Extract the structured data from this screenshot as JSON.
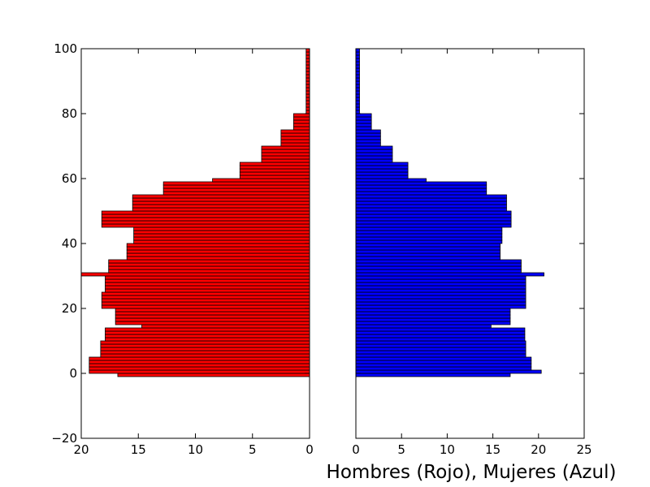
{
  "chart_data": {
    "type": "bar",
    "orientation": "horizontal",
    "xlabel": "Hombres (Rojo), Mujeres (Azul)",
    "y_bins": [
      -1,
      0,
      1,
      2,
      3,
      4,
      5,
      6,
      7,
      8,
      9,
      10,
      11,
      12,
      13,
      14,
      15,
      16,
      17,
      18,
      19,
      20,
      21,
      22,
      23,
      24,
      25,
      26,
      27,
      28,
      29,
      30,
      31,
      32,
      33,
      34,
      35,
      36,
      37,
      38,
      39,
      40,
      41,
      42,
      43,
      44,
      45,
      46,
      47,
      48,
      49,
      50,
      51,
      52,
      53,
      54,
      55,
      56,
      57,
      58,
      59,
      60,
      61,
      62,
      63,
      64,
      65,
      66,
      67,
      68,
      69,
      70,
      71,
      72,
      73,
      74,
      75,
      76,
      77,
      78,
      79,
      80,
      81,
      82,
      83,
      84,
      85,
      86,
      87,
      88,
      89,
      90,
      91,
      92,
      93,
      94,
      95,
      96,
      97,
      98,
      99
    ],
    "bin_height": 1,
    "series": [
      {
        "name": "Hombres",
        "color": "#ff0000",
        "direction": "left",
        "xlim": [
          20,
          0
        ],
        "xticks": [
          "20",
          "15",
          "10",
          "5",
          "0"
        ],
        "values": [
          16.8,
          19.3,
          19.3,
          19.3,
          19.3,
          19.3,
          18.3,
          18.3,
          18.3,
          18.3,
          18.3,
          17.9,
          17.9,
          17.9,
          17.9,
          14.7,
          17.0,
          17.0,
          17.0,
          17.0,
          17.0,
          18.2,
          18.2,
          18.2,
          18.2,
          18.2,
          17.9,
          17.9,
          17.9,
          17.9,
          17.9,
          20.0,
          17.6,
          17.6,
          17.6,
          17.6,
          16.0,
          16.0,
          16.0,
          16.0,
          16.0,
          15.4,
          15.4,
          15.4,
          15.4,
          15.4,
          18.2,
          18.2,
          18.2,
          18.2,
          18.2,
          15.5,
          15.5,
          15.5,
          15.5,
          15.5,
          12.8,
          12.8,
          12.8,
          12.8,
          8.5,
          6.1,
          6.1,
          6.1,
          6.1,
          6.1,
          4.2,
          4.2,
          4.2,
          4.2,
          4.2,
          2.5,
          2.5,
          2.5,
          2.5,
          2.5,
          1.4,
          1.4,
          1.4,
          1.4,
          1.4,
          0.3,
          0.3,
          0.3,
          0.3,
          0.3,
          0.3,
          0.3,
          0.3,
          0.3,
          0.3,
          0.3,
          0.3,
          0.3,
          0.3,
          0.3,
          0.3,
          0.3,
          0.3,
          0.3,
          0.3
        ]
      },
      {
        "name": "Mujeres",
        "color": "#0000ff",
        "direction": "right",
        "xlim": [
          0,
          25
        ],
        "xticks": [
          "0",
          "5",
          "10",
          "15",
          "20",
          "25"
        ],
        "values": [
          16.9,
          20.3,
          19.2,
          19.2,
          19.2,
          19.2,
          18.6,
          18.6,
          18.6,
          18.6,
          18.6,
          18.5,
          18.5,
          18.5,
          18.5,
          14.8,
          16.9,
          16.9,
          16.9,
          16.9,
          16.9,
          18.6,
          18.6,
          18.6,
          18.6,
          18.6,
          18.6,
          18.6,
          18.6,
          18.6,
          18.6,
          20.6,
          18.1,
          18.1,
          18.1,
          18.1,
          15.8,
          15.8,
          15.8,
          15.8,
          15.8,
          16.0,
          16.0,
          16.0,
          16.0,
          16.0,
          17.0,
          17.0,
          17.0,
          17.0,
          17.0,
          16.5,
          16.5,
          16.5,
          16.5,
          16.5,
          14.3,
          14.3,
          14.3,
          14.3,
          7.7,
          5.7,
          5.7,
          5.7,
          5.7,
          5.7,
          4.0,
          4.0,
          4.0,
          4.0,
          4.0,
          2.7,
          2.7,
          2.7,
          2.7,
          2.7,
          1.7,
          1.7,
          1.7,
          1.7,
          1.7,
          0.4,
          0.4,
          0.4,
          0.4,
          0.4,
          0.4,
          0.4,
          0.4,
          0.4,
          0.4,
          0.4,
          0.4,
          0.4,
          0.4,
          0.4,
          0.4,
          0.4,
          0.4,
          0.4,
          0.4
        ]
      }
    ],
    "ylim": [
      -20,
      100
    ],
    "yticks": [
      "−20",
      "0",
      "20",
      "40",
      "60",
      "80",
      "100"
    ],
    "grid": false,
    "legend": "none"
  }
}
